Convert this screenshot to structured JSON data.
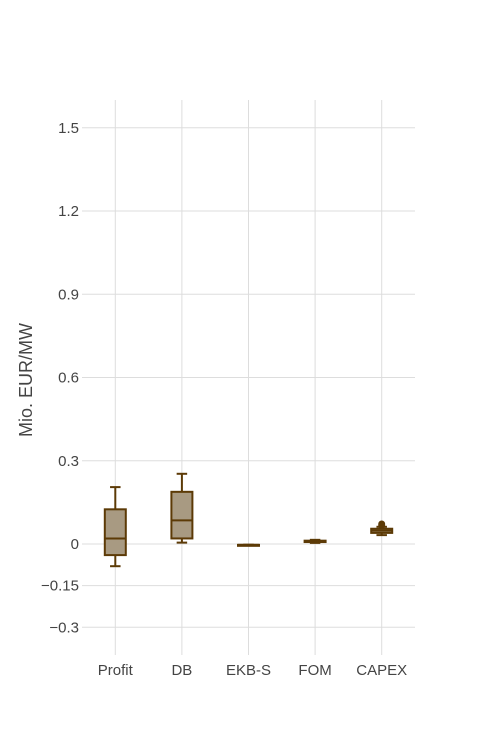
{
  "chart_data": {
    "type": "box",
    "title": "",
    "xlabel": "",
    "ylabel": "Mio. EUR/MW",
    "categories": [
      "Profit",
      "DB",
      "EKB-S",
      "FOM",
      "CAPEX"
    ],
    "ylim": [
      -0.4,
      1.6
    ],
    "yticks": [
      -0.3,
      -0.15,
      0,
      0.3,
      0.6,
      0.9,
      1.2,
      1.5
    ],
    "ytick_labels": [
      "−0.3",
      "−0.15",
      "0",
      "0.3",
      "0.6",
      "0.9",
      "1.2",
      "1.5"
    ],
    "grid": true,
    "legend": "none",
    "series": [
      {
        "boxes": [
          {
            "category": "Profit",
            "min": -0.08,
            "q1": -0.04,
            "median": 0.02,
            "q3": 0.125,
            "max": 0.205,
            "outliers": []
          },
          {
            "category": "DB",
            "min": 0.005,
            "q1": 0.02,
            "median": 0.085,
            "q3": 0.188,
            "max": 0.253,
            "outliers": []
          },
          {
            "category": "EKB-S",
            "min": -0.003,
            "q1": -0.003,
            "median": -0.003,
            "q3": -0.003,
            "max": -0.003,
            "outliers": []
          },
          {
            "category": "FOM",
            "min": 0.004,
            "q1": 0.007,
            "median": 0.009,
            "q3": 0.012,
            "max": 0.015,
            "outliers": []
          },
          {
            "category": "CAPEX",
            "min": 0.032,
            "q1": 0.04,
            "median": 0.048,
            "q3": 0.055,
            "max": 0.062,
            "outliers": [
              0.072,
              0.066
            ]
          }
        ]
      }
    ],
    "colors": {
      "box_fill": "#a89a82",
      "box_line": "#5c3a06",
      "grid": "#dddddd",
      "text": "#444444"
    }
  }
}
